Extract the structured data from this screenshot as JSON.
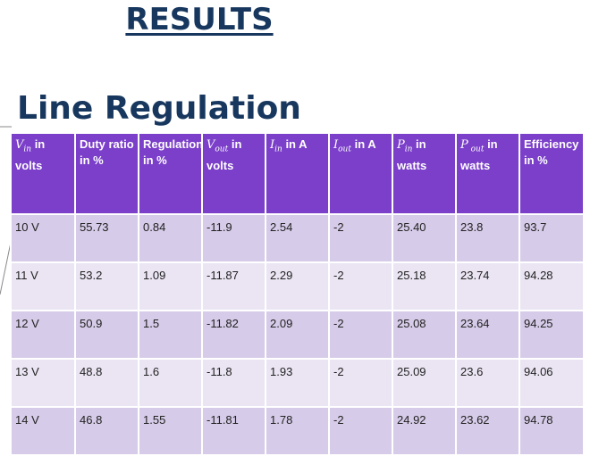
{
  "slide": {
    "title": "RESULTS",
    "subtitle": "Line Regulation"
  },
  "table": {
    "headers": [
      {
        "sym": "V",
        "sub": "in",
        "text": " in volts"
      },
      {
        "sym": "",
        "sub": "",
        "text": "Duty ratio in %"
      },
      {
        "sym": "",
        "sub": "",
        "text": "Regulation in %"
      },
      {
        "sym": "V",
        "sub": "out",
        "text": " in volts"
      },
      {
        "sym": "I",
        "sub": "in",
        "text": " in A"
      },
      {
        "sym": "I",
        "sub": "out",
        "text": " in A"
      },
      {
        "sym": "P",
        "sub": "in",
        "text": " in watts"
      },
      {
        "sym": "P",
        "sub": " out",
        "text": " in watts"
      },
      {
        "sym": "",
        "sub": "",
        "text": "Efficiency in %"
      }
    ],
    "rows": [
      [
        "10 V",
        "55.73",
        "0.84",
        "-11.9",
        "2.54",
        "-2",
        "25.40",
        "23.8",
        "93.7"
      ],
      [
        "11 V",
        "53.2",
        "1.09",
        "-11.87",
        "2.29",
        "-2",
        "25.18",
        "23.74",
        "94.28"
      ],
      [
        "12 V",
        "50.9",
        "1.5",
        "-11.82",
        "2.09",
        "-2",
        "25.08",
        "23.64",
        "94.25"
      ],
      [
        "13 V",
        "48.8",
        "1.6",
        "-11.8",
        "1.93",
        "-2",
        "25.09",
        "23.6",
        "94.06"
      ],
      [
        "14 V",
        "46.8",
        "1.55",
        "-11.81",
        "1.78",
        "-2",
        "24.92",
        "23.62",
        "94.78"
      ]
    ]
  },
  "colors": {
    "title": "#17375e",
    "header_bg": "#7b3fc9",
    "row_dark": "#d6cbe8",
    "row_light": "#ebe5f3"
  }
}
